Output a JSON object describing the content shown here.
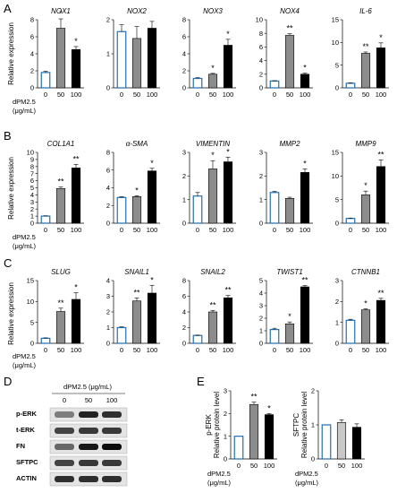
{
  "panels": {
    "A": {
      "letter": "A",
      "ylabel": "Relative expression",
      "dose_label_1": "dPM2.5",
      "dose_label_2": "(μg/mL)"
    },
    "B": {
      "letter": "B",
      "ylabel": "Relative expression",
      "dose_label_1": "dPM2.5",
      "dose_label_2": "(μg/mL)"
    },
    "C": {
      "letter": "C",
      "ylabel": "Relative expression",
      "dose_label_1": "dPM2.5",
      "dose_label_2": "(μg/mL)"
    },
    "D": {
      "letter": "D",
      "header": "dPM2.5 (μg/mL)",
      "lanes": [
        "0",
        "50",
        "100"
      ],
      "bands": [
        "p-ERK",
        "t-ERK",
        "FN",
        "SFTPC",
        "ACTIN"
      ]
    },
    "E": {
      "letter": "E",
      "dose_label_1": "dPM2.5",
      "dose_label_2": "(μg/mL)"
    }
  },
  "colors": {
    "control_edge": "#1f6fb5",
    "mid_fill": "#8c8c8c",
    "high_fill": "#000000",
    "light_fill": "#c8c8c8"
  },
  "chart_data": [
    {
      "id": "NOX1",
      "panel": "A",
      "type": "bar",
      "title": "NOX1",
      "categories": [
        "0",
        "50",
        "100"
      ],
      "values": [
        1.8,
        7.0,
        4.5
      ],
      "errors": [
        0.15,
        1.1,
        0.35
      ],
      "sig": [
        "",
        "*",
        "*"
      ],
      "ylim": [
        0,
        8
      ],
      "yticks": [
        0,
        2,
        4,
        6,
        8
      ],
      "ylabel": "Relative expression"
    },
    {
      "id": "NOX2",
      "panel": "A",
      "type": "bar",
      "title": "NOX2",
      "categories": [
        "0",
        "50",
        "100"
      ],
      "values": [
        1.65,
        1.45,
        1.75
      ],
      "errors": [
        0.2,
        0.35,
        0.2
      ],
      "sig": [
        "",
        "",
        ""
      ],
      "ylim": [
        0,
        2
      ],
      "yticks": [
        0,
        1,
        2
      ]
    },
    {
      "id": "NOX3",
      "panel": "A",
      "type": "bar",
      "title": "NOX3",
      "categories": [
        "0",
        "50",
        "100"
      ],
      "values": [
        1.1,
        1.6,
        5.0
      ],
      "errors": [
        0.1,
        0.1,
        0.7
      ],
      "sig": [
        "",
        "*",
        "*"
      ],
      "ylim": [
        0,
        8
      ],
      "yticks": [
        0,
        2,
        4,
        6,
        8
      ]
    },
    {
      "id": "NOX4",
      "panel": "A",
      "type": "bar",
      "title": "NOX4",
      "categories": [
        "0",
        "50",
        "100"
      ],
      "values": [
        1.0,
        7.7,
        2.0
      ],
      "errors": [
        0.05,
        0.25,
        0.15
      ],
      "sig": [
        "",
        "**",
        "*"
      ],
      "ylim": [
        0,
        10
      ],
      "yticks": [
        0,
        2,
        4,
        6,
        8,
        10
      ]
    },
    {
      "id": "IL-6",
      "panel": "A",
      "type": "bar",
      "title": "IL-6",
      "categories": [
        "0",
        "50",
        "100"
      ],
      "values": [
        1.0,
        7.6,
        8.8
      ],
      "errors": [
        0.1,
        0.3,
        1.1
      ],
      "sig": [
        "",
        "**",
        "*"
      ],
      "ylim": [
        0,
        15
      ],
      "yticks": [
        0,
        5,
        10,
        15
      ]
    },
    {
      "id": "COL1A1",
      "panel": "B",
      "type": "bar",
      "title": "COL1A1",
      "categories": [
        "0",
        "50",
        "100"
      ],
      "values": [
        1.0,
        4.9,
        7.8
      ],
      "errors": [
        0.05,
        0.2,
        0.5
      ],
      "sig": [
        "",
        "**",
        "**"
      ],
      "ylim": [
        0,
        10
      ],
      "yticks": [
        0,
        1,
        2,
        3,
        4,
        5,
        6,
        7,
        8,
        9,
        10
      ],
      "ylabel": "Relative expression"
    },
    {
      "id": "a-SMA",
      "panel": "B",
      "type": "bar",
      "title": "α-SMA",
      "categories": [
        "0",
        "50",
        "100"
      ],
      "values": [
        2.9,
        3.0,
        5.9
      ],
      "errors": [
        0.1,
        0.1,
        0.3
      ],
      "sig": [
        "",
        "*",
        "*"
      ],
      "ylim": [
        0,
        8
      ],
      "yticks": [
        0,
        2,
        4,
        6,
        8
      ]
    },
    {
      "id": "VIMENTIN",
      "panel": "B",
      "type": "bar",
      "title": "VIMENTIN",
      "categories": [
        "0",
        "50",
        "100"
      ],
      "values": [
        1.15,
        2.3,
        2.6
      ],
      "errors": [
        0.15,
        0.35,
        0.2
      ],
      "sig": [
        "",
        "*",
        "*"
      ],
      "ylim": [
        0,
        3
      ],
      "yticks": [
        0,
        1,
        2,
        3
      ]
    },
    {
      "id": "MMP2",
      "panel": "B",
      "type": "bar",
      "title": "MMP2",
      "categories": [
        "0",
        "50",
        "100"
      ],
      "values": [
        1.3,
        1.05,
        2.15
      ],
      "errors": [
        0.05,
        0.05,
        0.15
      ],
      "sig": [
        "",
        "",
        "*"
      ],
      "ylim": [
        0,
        3
      ],
      "yticks": [
        0,
        1,
        2,
        3
      ]
    },
    {
      "id": "MMP9",
      "panel": "B",
      "type": "bar",
      "title": "MMP9",
      "categories": [
        "0",
        "50",
        "100"
      ],
      "values": [
        1.0,
        6.0,
        12.0
      ],
      "errors": [
        0.1,
        0.8,
        1.4
      ],
      "sig": [
        "",
        "*",
        "**"
      ],
      "ylim": [
        0,
        15
      ],
      "yticks": [
        0,
        5,
        10,
        15
      ]
    },
    {
      "id": "SLUG",
      "panel": "C",
      "type": "bar",
      "title": "SLUG",
      "categories": [
        "0",
        "50",
        "100"
      ],
      "values": [
        1.2,
        7.6,
        10.5
      ],
      "errors": [
        0.1,
        0.8,
        1.6
      ],
      "sig": [
        "",
        "**",
        "*"
      ],
      "ylim": [
        0,
        15
      ],
      "yticks": [
        0,
        5,
        10,
        15
      ],
      "ylabel": "Relative expression"
    },
    {
      "id": "SNAIL1",
      "panel": "C",
      "type": "bar",
      "title": "SNAIL1",
      "categories": [
        "0",
        "50",
        "100"
      ],
      "values": [
        1.0,
        2.7,
        3.2
      ],
      "errors": [
        0.05,
        0.2,
        0.5
      ],
      "sig": [
        "",
        "**",
        "*"
      ],
      "ylim": [
        0,
        4
      ],
      "yticks": [
        0,
        1,
        2,
        3,
        4
      ]
    },
    {
      "id": "SNAIL2",
      "panel": "C",
      "type": "bar",
      "title": "SNAIL2",
      "categories": [
        "0",
        "50",
        "100"
      ],
      "values": [
        1.0,
        4.0,
        5.8
      ],
      "errors": [
        0.05,
        0.2,
        0.3
      ],
      "sig": [
        "",
        "**",
        "**"
      ],
      "ylim": [
        0,
        8
      ],
      "yticks": [
        0,
        2,
        4,
        6,
        8
      ]
    },
    {
      "id": "TWIST1",
      "panel": "C",
      "type": "bar",
      "title": "TWIST1",
      "categories": [
        "0",
        "50",
        "100"
      ],
      "values": [
        1.1,
        1.55,
        4.5
      ],
      "errors": [
        0.1,
        0.15,
        0.1
      ],
      "sig": [
        "",
        "*",
        "**"
      ],
      "ylim": [
        0,
        5
      ],
      "yticks": [
        0,
        1,
        2,
        3,
        4,
        5
      ]
    },
    {
      "id": "CTNNB1",
      "panel": "C",
      "type": "bar",
      "title": "CTNNB1",
      "categories": [
        "0",
        "50",
        "100"
      ],
      "values": [
        1.1,
        1.6,
        2.05
      ],
      "errors": [
        0.05,
        0.05,
        0.1
      ],
      "sig": [
        "",
        "*",
        "**"
      ],
      "ylim": [
        0,
        3
      ],
      "yticks": [
        0,
        1,
        2,
        3
      ]
    },
    {
      "id": "p-ERK",
      "panel": "E",
      "type": "bar",
      "title": "",
      "ylabel_1": "p-ERK",
      "ylabel_2": "Relative protein level",
      "categories": [
        "0",
        "50",
        "100"
      ],
      "values": [
        1.0,
        2.4,
        1.95
      ],
      "errors": [
        0.0,
        0.1,
        0.05
      ],
      "sig": [
        "",
        "**",
        "*"
      ],
      "ylim": [
        0,
        3
      ],
      "yticks": [
        0,
        1,
        2,
        3
      ]
    },
    {
      "id": "SFTPC",
      "panel": "E",
      "type": "bar",
      "title": "",
      "ylabel_1": "SFTPC",
      "ylabel_2": "Relative protein level",
      "categories": [
        "0",
        "50",
        "100"
      ],
      "values": [
        1.0,
        1.07,
        0.93
      ],
      "errors": [
        0.0,
        0.08,
        0.1
      ],
      "sig": [
        "",
        "",
        ""
      ],
      "ylim": [
        0,
        2
      ],
      "yticks": [
        0,
        1,
        2
      ],
      "fills": [
        "#ffffff",
        "#c8c8c8",
        "#000000"
      ]
    }
  ]
}
